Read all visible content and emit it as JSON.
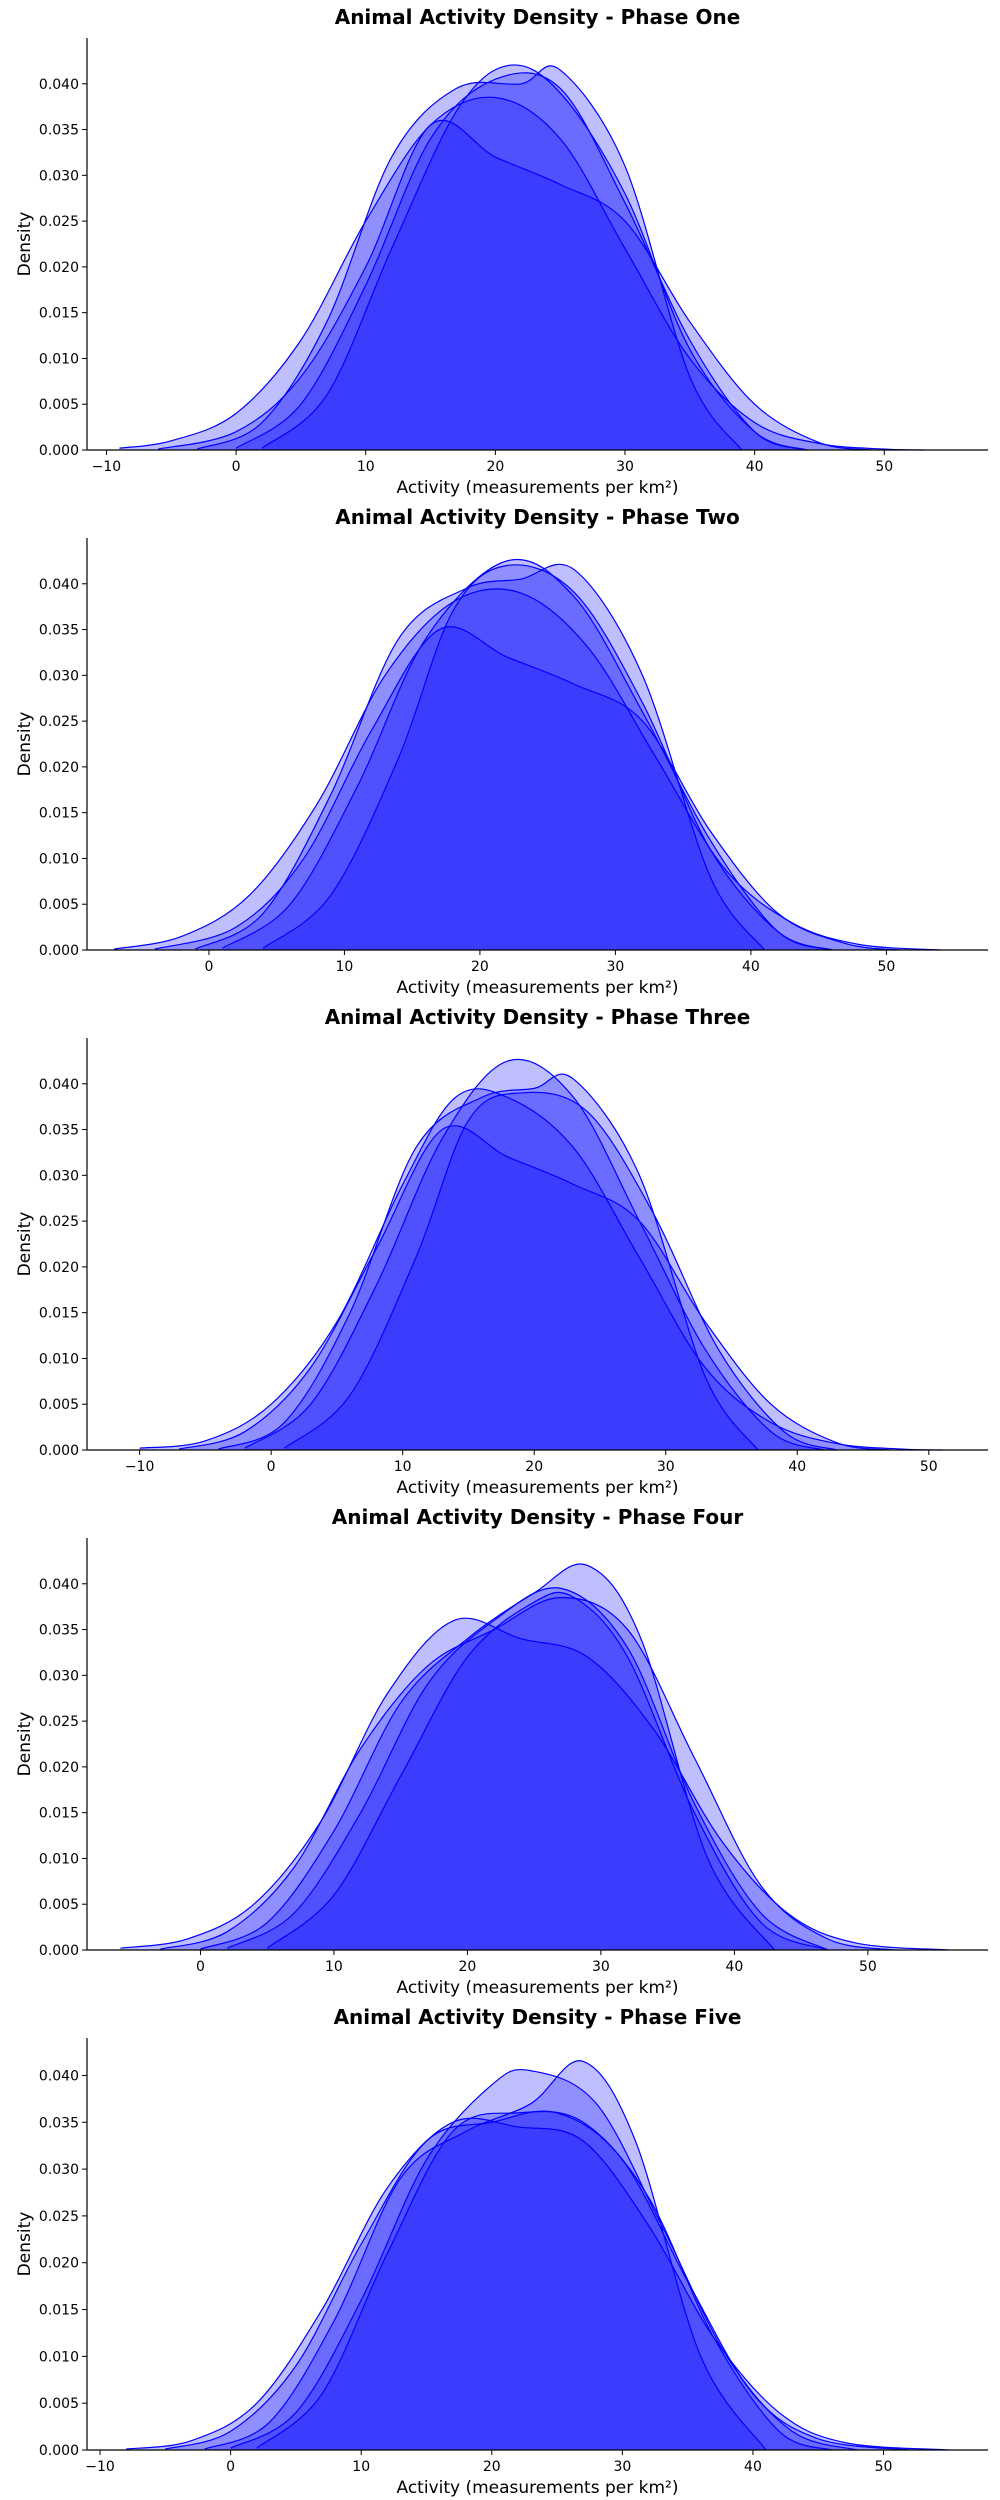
{
  "chart_data": [
    {
      "type": "area",
      "title": "Animal Activity Density - Phase One",
      "xlabel": "Activity (measurements per km²)",
      "ylabel": "Density",
      "xlim": [
        -11.5,
        58
      ],
      "ylim": [
        0,
        0.045
      ],
      "xticks": [
        -10,
        0,
        10,
        20,
        30,
        40,
        50
      ],
      "yticks": [
        0.0,
        0.005,
        0.01,
        0.015,
        0.02,
        0.025,
        0.03,
        0.035,
        0.04
      ],
      "grid": false,
      "fill_color": "#0000ff",
      "series": [
        {
          "x": [
            -9,
            -5,
            0,
            5,
            10,
            15,
            20,
            25,
            30,
            35,
            40,
            45,
            50,
            53
          ],
          "y": [
            0.0002,
            0.001,
            0.004,
            0.012,
            0.025,
            0.0355,
            0.0385,
            0.034,
            0.022,
            0.01,
            0.003,
            0.0007,
            0.0001,
            0.0
          ]
        },
        {
          "x": [
            -6,
            0,
            5,
            10,
            15,
            20,
            25,
            30,
            35,
            40,
            45,
            49
          ],
          "y": [
            0.0001,
            0.002,
            0.008,
            0.02,
            0.0355,
            0.032,
            0.029,
            0.025,
            0.014,
            0.005,
            0.0008,
            0.0
          ]
        },
        {
          "x": [
            -3,
            2,
            7,
            12,
            17,
            22,
            25,
            30,
            35,
            39
          ],
          "y": [
            0.0001,
            0.003,
            0.014,
            0.032,
            0.0395,
            0.04,
            0.0415,
            0.031,
            0.008,
            0.0
          ]
        },
        {
          "x": [
            0,
            5,
            10,
            15,
            20,
            25,
            30,
            35,
            40,
            44
          ],
          "y": [
            0.0002,
            0.005,
            0.018,
            0.034,
            0.0405,
            0.0395,
            0.027,
            0.012,
            0.002,
            0.0
          ]
        },
        {
          "x": [
            2,
            7,
            12,
            17,
            21,
            25,
            30,
            35,
            40,
            44
          ],
          "y": [
            0.0002,
            0.006,
            0.022,
            0.037,
            0.042,
            0.039,
            0.028,
            0.011,
            0.002,
            0.0
          ]
        }
      ]
    },
    {
      "type": "area",
      "title": "Animal Activity Density - Phase Two",
      "xlabel": "Activity (measurements per km²)",
      "ylabel": "Density",
      "xlim": [
        -9,
        57.5
      ],
      "ylim": [
        0,
        0.045
      ],
      "xticks": [
        0,
        10,
        20,
        30,
        40,
        50
      ],
      "yticks": [
        0.0,
        0.005,
        0.01,
        0.015,
        0.02,
        0.025,
        0.03,
        0.035,
        0.04
      ],
      "grid": false,
      "fill_color": "#0000ff",
      "series": [
        {
          "x": [
            -7,
            -2,
            3,
            8,
            13,
            18,
            23,
            28,
            33,
            38,
            43,
            48,
            54
          ],
          "y": [
            0.0001,
            0.0015,
            0.006,
            0.016,
            0.03,
            0.038,
            0.039,
            0.033,
            0.021,
            0.009,
            0.003,
            0.0006,
            0.0
          ]
        },
        {
          "x": [
            -4,
            2,
            7,
            12,
            17,
            22,
            27,
            32,
            37,
            42,
            47,
            51
          ],
          "y": [
            0.0001,
            0.0025,
            0.01,
            0.024,
            0.035,
            0.032,
            0.029,
            0.025,
            0.013,
            0.004,
            0.0007,
            0.0
          ]
        },
        {
          "x": [
            -1,
            4,
            9,
            14,
            19,
            23,
            27,
            32,
            37,
            41
          ],
          "y": [
            0.0001,
            0.004,
            0.017,
            0.034,
            0.0395,
            0.0405,
            0.0415,
            0.03,
            0.008,
            0.0
          ]
        },
        {
          "x": [
            1,
            6,
            11,
            16,
            22,
            27,
            32,
            37,
            42,
            46
          ],
          "y": [
            0.0002,
            0.005,
            0.018,
            0.034,
            0.0425,
            0.0385,
            0.026,
            0.012,
            0.002,
            0.0
          ]
        },
        {
          "x": [
            4,
            9,
            14,
            18,
            22,
            27,
            32,
            37,
            42,
            46
          ],
          "y": [
            0.0002,
            0.006,
            0.021,
            0.037,
            0.042,
            0.039,
            0.027,
            0.011,
            0.002,
            0.0
          ]
        }
      ]
    },
    {
      "type": "area",
      "title": "Animal Activity Density - Phase Three",
      "xlabel": "Activity (measurements per km²)",
      "ylabel": "Density",
      "xlim": [
        -14,
        54.5
      ],
      "ylim": [
        0,
        0.045
      ],
      "xticks": [
        -10,
        0,
        10,
        20,
        30,
        40,
        50
      ],
      "yticks": [
        0.0,
        0.005,
        0.01,
        0.015,
        0.02,
        0.025,
        0.03,
        0.035,
        0.04
      ],
      "grid": false,
      "fill_color": "#0000ff",
      "series": [
        {
          "x": [
            -10,
            -5,
            0,
            5,
            10,
            14,
            18,
            23,
            28,
            33,
            38,
            43,
            48,
            51
          ],
          "y": [
            0.0002,
            0.001,
            0.005,
            0.014,
            0.029,
            0.0385,
            0.0385,
            0.033,
            0.021,
            0.009,
            0.003,
            0.0007,
            0.0001,
            0.0
          ]
        },
        {
          "x": [
            -7,
            -2,
            3,
            8,
            13,
            18,
            23,
            28,
            33,
            38,
            43,
            47
          ],
          "y": [
            0.0001,
            0.002,
            0.009,
            0.022,
            0.035,
            0.032,
            0.029,
            0.025,
            0.014,
            0.005,
            0.0008,
            0.0
          ]
        },
        {
          "x": [
            -4,
            1,
            6,
            11,
            16,
            20,
            23,
            28,
            33,
            37
          ],
          "y": [
            0.0001,
            0.003,
            0.015,
            0.033,
            0.0385,
            0.0395,
            0.0405,
            0.03,
            0.008,
            0.0
          ]
        },
        {
          "x": [
            -2,
            3,
            8,
            13,
            18,
            23,
            28,
            33,
            38,
            42
          ],
          "y": [
            0.0002,
            0.005,
            0.018,
            0.034,
            0.0425,
            0.0385,
            0.025,
            0.011,
            0.002,
            0.0
          ]
        },
        {
          "x": [
            1,
            6,
            11,
            15,
            19,
            24,
            29,
            34,
            39,
            43
          ],
          "y": [
            0.0002,
            0.006,
            0.021,
            0.036,
            0.039,
            0.037,
            0.026,
            0.011,
            0.002,
            0.0
          ]
        }
      ]
    },
    {
      "type": "area",
      "title": "Animal Activity Density - Phase Four",
      "xlabel": "Activity (measurements per km²)",
      "ylabel": "Density",
      "xlim": [
        -8.5,
        59
      ],
      "ylim": [
        0,
        0.045
      ],
      "xticks": [
        0,
        10,
        20,
        30,
        40,
        50
      ],
      "yticks": [
        0.0,
        0.005,
        0.01,
        0.015,
        0.02,
        0.025,
        0.03,
        0.035,
        0.04
      ],
      "grid": false,
      "fill_color": "#0000ff",
      "series": [
        {
          "x": [
            -6,
            -1,
            4,
            9,
            14,
            19,
            24,
            29,
            34,
            39,
            44,
            49,
            56
          ],
          "y": [
            0.0002,
            0.0012,
            0.005,
            0.014,
            0.028,
            0.036,
            0.034,
            0.032,
            0.024,
            0.012,
            0.004,
            0.0008,
            0.0
          ]
        },
        {
          "x": [
            -3,
            2,
            7,
            12,
            17,
            22,
            27,
            32,
            37,
            42,
            47,
            52
          ],
          "y": [
            0.0001,
            0.002,
            0.009,
            0.022,
            0.031,
            0.035,
            0.0385,
            0.035,
            0.021,
            0.007,
            0.0012,
            0.0
          ]
        },
        {
          "x": [
            0,
            5,
            10,
            15,
            20,
            25,
            29,
            33,
            38,
            43
          ],
          "y": [
            0.0001,
            0.003,
            0.013,
            0.027,
            0.034,
            0.039,
            0.042,
            0.034,
            0.01,
            0.0
          ]
        },
        {
          "x": [
            2,
            7,
            12,
            17,
            22,
            27,
            32,
            37,
            42,
            47
          ],
          "y": [
            0.0002,
            0.004,
            0.015,
            0.029,
            0.036,
            0.0395,
            0.033,
            0.016,
            0.004,
            0.0
          ]
        },
        {
          "x": [
            5,
            10,
            15,
            20,
            25,
            28,
            32,
            37,
            42,
            47
          ],
          "y": [
            0.0002,
            0.006,
            0.019,
            0.032,
            0.038,
            0.0385,
            0.032,
            0.015,
            0.003,
            0.0
          ]
        }
      ]
    },
    {
      "type": "area",
      "title": "Animal Activity Density - Phase Five",
      "xlabel": "Activity (measurements per km²)",
      "ylabel": "Density",
      "xlim": [
        -11,
        58
      ],
      "ylim": [
        0,
        0.044
      ],
      "xticks": [
        -10,
        0,
        10,
        20,
        30,
        40,
        50
      ],
      "yticks": [
        0.0,
        0.005,
        0.01,
        0.015,
        0.02,
        0.025,
        0.03,
        0.035,
        0.04
      ],
      "grid": false,
      "fill_color": "#0000ff",
      "series": [
        {
          "x": [
            -8,
            -3,
            2,
            7,
            12,
            17,
            22,
            27,
            32,
            37,
            42,
            47,
            55
          ],
          "y": [
            0.0001,
            0.001,
            0.005,
            0.015,
            0.028,
            0.035,
            0.0345,
            0.033,
            0.024,
            0.012,
            0.004,
            0.0008,
            0.0
          ]
        },
        {
          "x": [
            -5,
            0,
            5,
            10,
            15,
            20,
            25,
            30,
            35,
            40,
            45,
            52
          ],
          "y": [
            0.0001,
            0.002,
            0.009,
            0.022,
            0.033,
            0.035,
            0.036,
            0.031,
            0.018,
            0.006,
            0.0012,
            0.0
          ]
        },
        {
          "x": [
            -2,
            3,
            8,
            13,
            18,
            23,
            27,
            31,
            36,
            41
          ],
          "y": [
            0.0001,
            0.003,
            0.014,
            0.029,
            0.034,
            0.037,
            0.0415,
            0.033,
            0.01,
            0.0
          ]
        },
        {
          "x": [
            0,
            5,
            10,
            15,
            20,
            23,
            28,
            33,
            38,
            43,
            48
          ],
          "y": [
            0.0002,
            0.004,
            0.016,
            0.031,
            0.039,
            0.0405,
            0.037,
            0.024,
            0.01,
            0.002,
            0.0
          ]
        },
        {
          "x": [
            2,
            7,
            12,
            17,
            22,
            27,
            32,
            37,
            42,
            46
          ],
          "y": [
            0.0002,
            0.006,
            0.021,
            0.034,
            0.036,
            0.035,
            0.027,
            0.012,
            0.002,
            0.0
          ]
        }
      ]
    }
  ]
}
